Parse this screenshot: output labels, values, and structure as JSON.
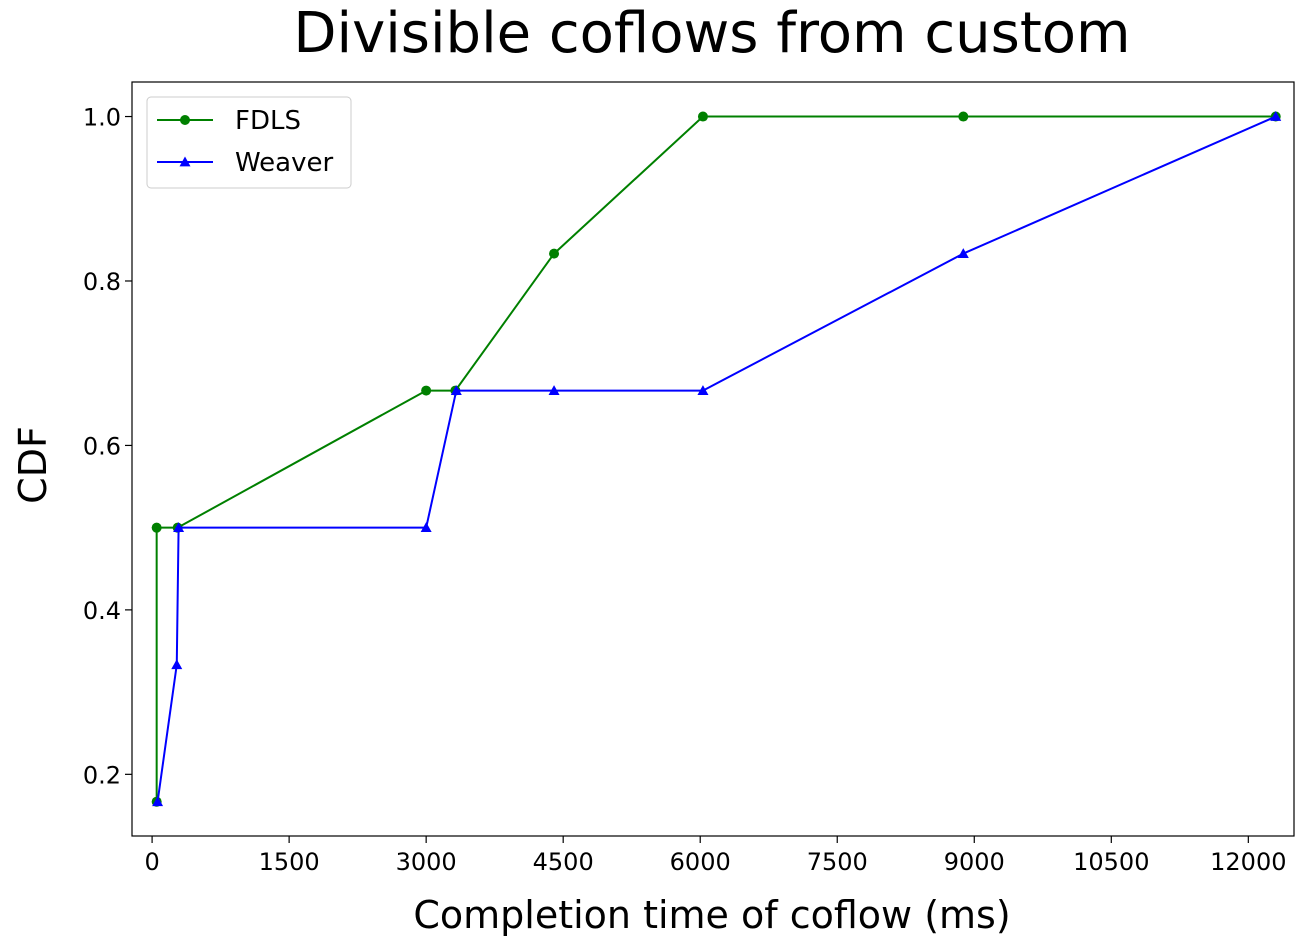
{
  "chart_data": {
    "type": "line",
    "title": "Divisible coflows from custom",
    "xlabel": "Completion time of coflow (ms)",
    "ylabel": "CDF",
    "xlim": [
      -220,
      12500
    ],
    "ylim": [
      0.125,
      1.042
    ],
    "xticks": [
      0,
      1500,
      3000,
      4500,
      6000,
      7500,
      9000,
      10500,
      12000
    ],
    "yticks": [
      0.2,
      0.4,
      0.6,
      0.8,
      1.0
    ],
    "ytick_labels": [
      "0.2",
      "0.4",
      "0.6",
      "0.8",
      "1.0"
    ],
    "legend_position": "upper-left",
    "series": [
      {
        "name": "FDLS",
        "color": "#008000",
        "marker": "circle",
        "x": [
          50,
          50,
          280,
          3000,
          3320,
          4400,
          6030,
          8880,
          12300
        ],
        "y": [
          0.1667,
          0.5,
          0.5,
          0.6667,
          0.6667,
          0.8333,
          1.0,
          1.0,
          1.0
        ]
      },
      {
        "name": "Weaver",
        "color": "#0000ff",
        "marker": "triangle",
        "x": [
          60,
          270,
          290,
          3000,
          3330,
          4400,
          6030,
          8880,
          12300
        ],
        "y": [
          0.1667,
          0.3333,
          0.5,
          0.5,
          0.6667,
          0.6667,
          0.6667,
          0.8333,
          1.0
        ]
      }
    ]
  }
}
